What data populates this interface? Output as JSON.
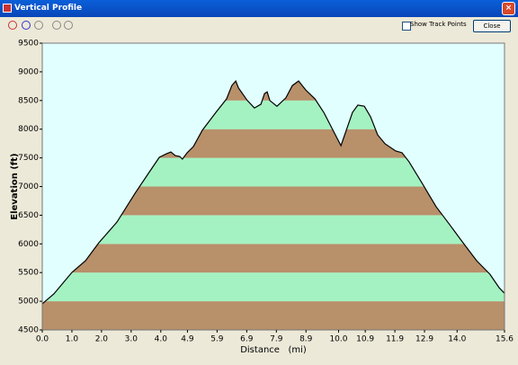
{
  "window": {
    "title": "Vertical Profile",
    "checkbox": "Show Track Points",
    "button": "Close"
  },
  "chart_data": {
    "type": "area",
    "x_label": "Distance   (mi)",
    "y_label": "Elevation (ft)",
    "x": [
      0,
      0.39,
      1.0,
      1.46,
      1.91,
      2.52,
      3.13,
      3.58,
      3.95,
      4.19,
      4.34,
      4.49,
      4.64,
      4.73,
      4.89,
      5.1,
      5.4,
      5.86,
      6.22,
      6.4,
      6.53,
      6.62,
      6.92,
      7.16,
      7.38,
      7.5,
      7.59,
      7.68,
      7.92,
      8.22,
      8.44,
      8.65,
      8.89,
      9.2,
      9.5,
      9.86,
      10.08,
      10.26,
      10.47,
      10.65,
      10.87,
      11.08,
      11.32,
      11.57,
      11.93,
      12.14,
      12.38,
      12.84,
      13.29,
      13.75,
      14.2,
      14.66,
      15.11,
      15.42,
      15.6
    ],
    "values": [
      4955,
      5127,
      5503,
      5707,
      6020,
      6380,
      6882,
      7227,
      7509,
      7571,
      7603,
      7540,
      7525,
      7478,
      7590,
      7697,
      7980,
      8293,
      8528,
      8763,
      8840,
      8720,
      8500,
      8370,
      8435,
      8620,
      8650,
      8500,
      8400,
      8545,
      8760,
      8840,
      8685,
      8530,
      8293,
      7933,
      7713,
      7980,
      8293,
      8420,
      8400,
      8215,
      7900,
      7745,
      7620,
      7590,
      7430,
      7040,
      6650,
      6335,
      6020,
      5707,
      5470,
      5235,
      5140
    ],
    "color": "#000000",
    "band_colors": [
      "#b8906a",
      "#a4f2c1"
    ],
    "background": "#e1ffff",
    "xlim": [
      0,
      15.6
    ],
    "xticks": [
      {
        "value": 0,
        "label": "0.0"
      },
      {
        "value": 1,
        "label": "1.0"
      },
      {
        "value": 2,
        "label": "2.0"
      },
      {
        "value": 3,
        "label": "3.0"
      },
      {
        "value": 4,
        "label": "4.0"
      },
      4.9,
      5.9,
      6.9,
      7.9,
      8.9,
      {
        "value": 10,
        "label": "10.0"
      },
      10.9,
      11.9,
      12.9,
      {
        "value": 14,
        "label": "14.0"
      },
      15.6
    ],
    "ylim": [
      4500,
      9500
    ],
    "yticks": [
      4500,
      5000,
      5500,
      6000,
      6500,
      7000,
      7500,
      8000,
      8500,
      9000,
      9500
    ]
  }
}
